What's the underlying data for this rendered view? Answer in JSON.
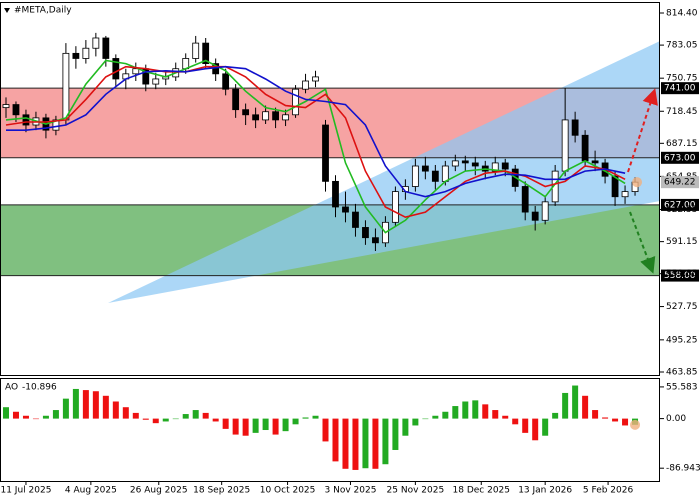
{
  "chart_data": [
    {
      "type": "candlestick",
      "title": "#META,Daily",
      "ohlc": [
        [
          722,
          732,
          712,
          725
        ],
        [
          725,
          728,
          708,
          715
        ],
        [
          715,
          720,
          698,
          705
        ],
        [
          705,
          718,
          700,
          712
        ],
        [
          712,
          716,
          692,
          700
        ],
        [
          700,
          714,
          695,
          710
        ],
        [
          710,
          785,
          705,
          775
        ],
        [
          775,
          782,
          760,
          770
        ],
        [
          770,
          788,
          765,
          780
        ],
        [
          780,
          795,
          772,
          790
        ],
        [
          790,
          792,
          762,
          770
        ],
        [
          770,
          774,
          742,
          750
        ],
        [
          750,
          760,
          740,
          755
        ],
        [
          755,
          766,
          748,
          760
        ],
        [
          760,
          764,
          738,
          745
        ],
        [
          745,
          756,
          740,
          750
        ],
        [
          750,
          758,
          744,
          752
        ],
        [
          752,
          766,
          748,
          760
        ],
        [
          760,
          775,
          755,
          770
        ],
        [
          770,
          792,
          766,
          785
        ],
        [
          785,
          790,
          760,
          765
        ],
        [
          765,
          770,
          748,
          755
        ],
        [
          755,
          760,
          734,
          740
        ],
        [
          740,
          745,
          712,
          720
        ],
        [
          720,
          726,
          705,
          715
        ],
        [
          715,
          722,
          702,
          710
        ],
        [
          710,
          724,
          706,
          718
        ],
        [
          718,
          722,
          702,
          710
        ],
        [
          710,
          720,
          704,
          715
        ],
        [
          715,
          744,
          712,
          740
        ],
        [
          740,
          755,
          736,
          748
        ],
        [
          748,
          758,
          742,
          752
        ],
        [
          705,
          710,
          640,
          650
        ],
        [
          650,
          656,
          615,
          625
        ],
        [
          625,
          640,
          610,
          620
        ],
        [
          620,
          628,
          596,
          605
        ],
        [
          605,
          612,
          588,
          595
        ],
        [
          595,
          604,
          582,
          590
        ],
        [
          590,
          616,
          586,
          610
        ],
        [
          610,
          645,
          606,
          640
        ],
        [
          640,
          652,
          632,
          645
        ],
        [
          645,
          672,
          640,
          665
        ],
        [
          665,
          674,
          652,
          660
        ],
        [
          660,
          666,
          642,
          650
        ],
        [
          650,
          670,
          646,
          665
        ],
        [
          665,
          676,
          660,
          670
        ],
        [
          670,
          675,
          660,
          668
        ],
        [
          668,
          674,
          656,
          665
        ],
        [
          665,
          670,
          652,
          660
        ],
        [
          660,
          674,
          656,
          668
        ],
        [
          668,
          672,
          655,
          662
        ],
        [
          662,
          666,
          640,
          645
        ],
        [
          645,
          650,
          612,
          620
        ],
        [
          620,
          626,
          602,
          612
        ],
        [
          612,
          636,
          608,
          630
        ],
        [
          630,
          666,
          626,
          660
        ],
        [
          660,
          741,
          655,
          710
        ],
        [
          710,
          718,
          688,
          695
        ],
        [
          695,
          700,
          664,
          670
        ],
        [
          670,
          680,
          660,
          668
        ],
        [
          668,
          672,
          648,
          655
        ],
        [
          655,
          660,
          626,
          635
        ],
        [
          635,
          646,
          628,
          640
        ],
        [
          640,
          654,
          636,
          649.22
        ]
      ],
      "xlim": [
        -0.6,
        65.5
      ],
      "xticks": [
        {
          "value": 2,
          "label": "11 Jul 2025"
        },
        {
          "value": 8.5,
          "label": "4 Aug 2025"
        },
        {
          "value": 15.3,
          "label": "26 Aug 2025"
        },
        {
          "value": 21.6,
          "label": "18 Sep 2025"
        },
        {
          "value": 28.2,
          "label": "10 Oct 2025"
        },
        {
          "value": 34.5,
          "label": "3 Nov 2025"
        },
        {
          "value": 41,
          "label": "25 Nov 2025"
        },
        {
          "value": 47.6,
          "label": "18 Dec 2025"
        },
        {
          "value": 54,
          "label": "13 Jan 2026"
        },
        {
          "value": 60.3,
          "label": "5 Feb 2026"
        }
      ],
      "ylim": [
        463.85,
        814.4
      ],
      "yticks": [
        {
          "value": 814.4,
          "label": "814.40"
        },
        {
          "value": 783.05,
          "label": "783.05"
        },
        {
          "value": 750.75,
          "label": "750.75"
        },
        {
          "value": 718.45,
          "label": "718.45"
        },
        {
          "value": 687.15,
          "label": "687.15"
        },
        {
          "value": 654.85,
          "label": "654.85"
        },
        {
          "value": 622.55,
          "label": "622.55"
        },
        {
          "value": 591.15,
          "label": "591.15"
        },
        {
          "value": 559.85,
          "label": "559.85"
        },
        {
          "value": 527.75,
          "label": "527.75"
        },
        {
          "value": 495.25,
          "label": "495.25"
        },
        {
          "value": 463.85,
          "label": "463.85"
        }
      ],
      "levels": [
        {
          "value": 741,
          "label": "741.00"
        },
        {
          "value": 673,
          "label": "673.00"
        },
        {
          "value": 627,
          "label": "627.00"
        },
        {
          "value": 558,
          "label": "558.00"
        }
      ],
      "zones": [
        {
          "levels": [
            0,
            1
          ],
          "color": "#f6a3a3"
        },
        {
          "levels": [
            2,
            3
          ],
          "color": "#80c080"
        }
      ],
      "up_color": "#ffffff",
      "down_color": "#000000",
      "ma_x": [
        0,
        2,
        4,
        6,
        8,
        10,
        12,
        14,
        16,
        18,
        20,
        22,
        24,
        26,
        28,
        30,
        32,
        34,
        36,
        38,
        40,
        42,
        44,
        46,
        48,
        50,
        52,
        54,
        56,
        58,
        60,
        62
      ],
      "series": [
        {
          "color": "#22bb22",
          "values": [
            710,
            712,
            706,
            712,
            745,
            768,
            765,
            757,
            752,
            760,
            768,
            758,
            738,
            722,
            718,
            728,
            740,
            668,
            625,
            600,
            612,
            632,
            650,
            660,
            662,
            660,
            648,
            635,
            660,
            670,
            660,
            648
          ]
        },
        {
          "color": "#dd1111",
          "values": [
            705,
            708,
            708,
            710,
            730,
            752,
            762,
            760,
            757,
            757,
            762,
            762,
            752,
            735,
            724,
            722,
            735,
            712,
            660,
            625,
            615,
            620,
            635,
            650,
            658,
            660,
            655,
            645,
            650,
            665,
            662,
            652
          ]
        },
        {
          "color": "#1111cc",
          "values": [
            700,
            700,
            702,
            705,
            715,
            735,
            750,
            757,
            758,
            757,
            760,
            762,
            760,
            750,
            738,
            730,
            728,
            725,
            705,
            665,
            640,
            635,
            640,
            648,
            653,
            657,
            656,
            652,
            652,
            660,
            662,
            658
          ]
        }
      ]
    },
    {
      "type": "bar",
      "name": "AO",
      "values": [
        20,
        12,
        5,
        0,
        5,
        15,
        35,
        52,
        50,
        48,
        40,
        30,
        20,
        10,
        -2,
        -8,
        -5,
        0,
        8,
        15,
        10,
        -5,
        -18,
        -28,
        -30,
        -25,
        -20,
        -28,
        -22,
        -10,
        2,
        5,
        -40,
        -75,
        -88,
        -90,
        -87,
        -88,
        -80,
        -55,
        -30,
        -12,
        0,
        5,
        12,
        22,
        30,
        32,
        25,
        15,
        5,
        -10,
        -25,
        -38,
        -30,
        10,
        45,
        58,
        40,
        15,
        2,
        -5,
        -12,
        -10.896
      ],
      "up_color": "#22aa22",
      "down_color": "#ee1111",
      "ylim": [
        -109.4,
        67.7
      ],
      "yticks": [
        55.583,
        {
          "value": 0,
          "label": "0.00"
        },
        -86.943
      ]
    }
  ]
}
